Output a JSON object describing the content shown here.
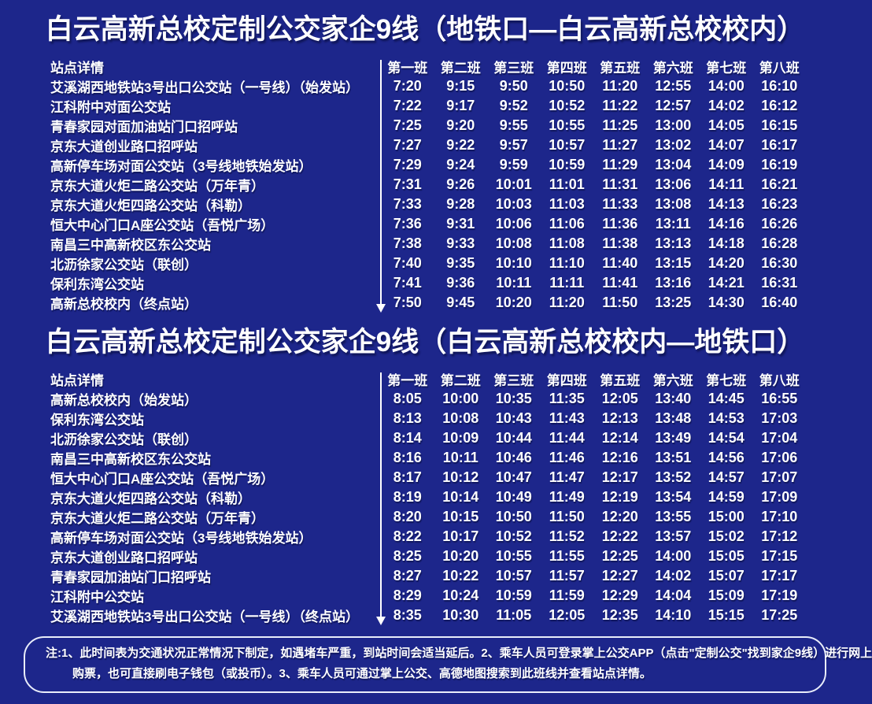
{
  "page": {
    "background_color": "#1d268b",
    "text_color": "#ffffff"
  },
  "sections": [
    {
      "title": "白云高新总校定制公交家企9线（地铁口—白云高新总校校内）",
      "header": {
        "station": "站点详情",
        "columns": [
          "第一班",
          "第二班",
          "第三班",
          "第四班",
          "第五班",
          "第六班",
          "第七班",
          "第八班"
        ]
      },
      "rows": [
        {
          "station": "艾溪湖西地铁站3号出口公交站（一号线）（始发站）",
          "times": [
            "7:20",
            "9:15",
            "9:50",
            "10:50",
            "11:20",
            "12:55",
            "14:00",
            "16:10"
          ]
        },
        {
          "station": "江科附中对面公交站",
          "times": [
            "7:22",
            "9:17",
            "9:52",
            "10:52",
            "11:22",
            "12:57",
            "14:02",
            "16:12"
          ]
        },
        {
          "station": "青春家园对面加油站门口招呼站",
          "times": [
            "7:25",
            "9:20",
            "9:55",
            "10:55",
            "11:25",
            "13:00",
            "14:05",
            "16:15"
          ]
        },
        {
          "station": "京东大道创业路口招呼站",
          "times": [
            "7:27",
            "9:22",
            "9:57",
            "10:57",
            "11:27",
            "13:02",
            "14:07",
            "16:17"
          ]
        },
        {
          "station": "高新停车场对面公交站（3号线地铁始发站）",
          "times": [
            "7:29",
            "9:24",
            "9:59",
            "10:59",
            "11:29",
            "13:04",
            "14:09",
            "16:19"
          ]
        },
        {
          "station": "京东大道火炬二路公交站（万年青）",
          "times": [
            "7:31",
            "9:26",
            "10:01",
            "11:01",
            "11:31",
            "13:06",
            "14:11",
            "16:21"
          ]
        },
        {
          "station": "京东大道火炬四路公交站（科勒）",
          "times": [
            "7:33",
            "9:28",
            "10:03",
            "11:03",
            "11:33",
            "13:08",
            "14:13",
            "16:23"
          ]
        },
        {
          "station": "恒大中心门口A座公交站（吾悦广场）",
          "times": [
            "7:36",
            "9:31",
            "10:06",
            "11:06",
            "11:36",
            "13:11",
            "14:16",
            "16:26"
          ]
        },
        {
          "station": "南昌三中高新校区东公交站",
          "times": [
            "7:38",
            "9:33",
            "10:08",
            "11:08",
            "11:38",
            "13:13",
            "14:18",
            "16:28"
          ]
        },
        {
          "station": "北沥徐家公交站（联创）",
          "times": [
            "7:40",
            "9:35",
            "10:10",
            "11:10",
            "11:40",
            "13:15",
            "14:20",
            "16:30"
          ]
        },
        {
          "station": "保利东湾公交站",
          "times": [
            "7:41",
            "9:36",
            "10:11",
            "11:11",
            "11:41",
            "13:16",
            "14:21",
            "16:31"
          ]
        },
        {
          "station": "高新总校校内（终点站）",
          "times": [
            "7:50",
            "9:45",
            "10:20",
            "11:20",
            "11:50",
            "13:25",
            "14:30",
            "16:40"
          ]
        }
      ]
    },
    {
      "title": "白云高新总校定制公交家企9线（白云高新总校校内—地铁口）",
      "header": {
        "station": "站点详情",
        "columns": [
          "第一班",
          "第二班",
          "第三班",
          "第四班",
          "第五班",
          "第六班",
          "第七班",
          "第八班"
        ]
      },
      "rows": [
        {
          "station": "高新总校校内（始发站）",
          "times": [
            "8:05",
            "10:00",
            "10:35",
            "11:35",
            "12:05",
            "13:40",
            "14:45",
            "16:55"
          ]
        },
        {
          "station": "保利东湾公交站",
          "times": [
            "8:13",
            "10:08",
            "10:43",
            "11:43",
            "12:13",
            "13:48",
            "14:53",
            "17:03"
          ]
        },
        {
          "station": "北沥徐家公交站（联创）",
          "times": [
            "8:14",
            "10:09",
            "10:44",
            "11:44",
            "12:14",
            "13:49",
            "14:54",
            "17:04"
          ]
        },
        {
          "station": "南昌三中高新校区东公交站",
          "times": [
            "8:16",
            "10:11",
            "10:46",
            "11:46",
            "12:16",
            "13:51",
            "14:56",
            "17:06"
          ]
        },
        {
          "station": "恒大中心门口A座公交站（吾悦广场）",
          "times": [
            "8:17",
            "10:12",
            "10:47",
            "11:47",
            "12:17",
            "13:52",
            "14:57",
            "17:07"
          ]
        },
        {
          "station": "京东大道火炬四路公交站（科勒）",
          "times": [
            "8:19",
            "10:14",
            "10:49",
            "11:49",
            "12:19",
            "13:54",
            "14:59",
            "17:09"
          ]
        },
        {
          "station": "京东大道火炬二路公交站（万年青）",
          "times": [
            "8:20",
            "10:15",
            "10:50",
            "11:50",
            "12:20",
            "13:55",
            "15:00",
            "17:10"
          ]
        },
        {
          "station": "高新停车场对面公交站（3号线地铁始发站）",
          "times": [
            "8:22",
            "10:17",
            "10:52",
            "11:52",
            "12:22",
            "13:57",
            "15:02",
            "17:12"
          ]
        },
        {
          "station": "京东大道创业路口招呼站",
          "times": [
            "8:25",
            "10:20",
            "10:55",
            "11:55",
            "12:25",
            "14:00",
            "15:05",
            "17:15"
          ]
        },
        {
          "station": "青春家园加油站门口招呼站",
          "times": [
            "8:27",
            "10:22",
            "10:57",
            "11:57",
            "12:27",
            "14:02",
            "15:07",
            "17:17"
          ]
        },
        {
          "station": "江科附中公交站",
          "times": [
            "8:29",
            "10:24",
            "10:59",
            "11:59",
            "12:29",
            "14:04",
            "15:09",
            "17:19"
          ]
        },
        {
          "station": "艾溪湖西地铁站3号出口公交站（一号线）（终点站）",
          "times": [
            "8:35",
            "10:30",
            "11:05",
            "12:05",
            "12:35",
            "14:10",
            "15:15",
            "17:25"
          ]
        }
      ]
    }
  ],
  "note": {
    "lines": [
      "注:1、此时间表为交通状况正常情况下制定，如遇堵车严重，到站时间会适当延后。2、乘车人员可登录掌上公交APP（点击\"定制公交\"找到家企9线）进行网上",
      "购票，也可直接刷电子钱包（或投币）。3、乘车人员可通过掌上公交、高德地图搜索到此班线并查看站点详情。"
    ]
  }
}
